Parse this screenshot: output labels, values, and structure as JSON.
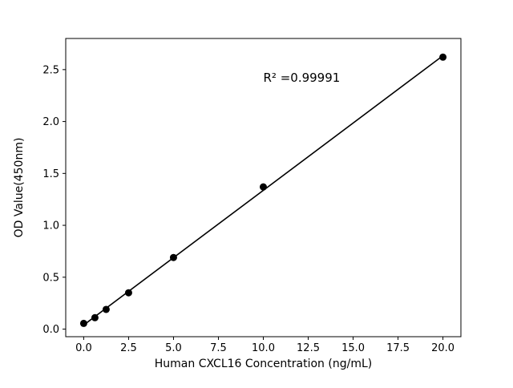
{
  "figure": {
    "background": "#ffffff"
  },
  "chart_data": {
    "type": "scatter",
    "title": "",
    "xlabel": "Human CXCL16 Concentration (ng/mL)",
    "ylabel": "OD Value(450nm)",
    "annotation": "R² =0.99991",
    "series": [
      {
        "name": "standard-curve-points",
        "x": [
          0,
          0.625,
          1.25,
          2.5,
          5,
          10,
          20
        ],
        "y": [
          0.055,
          0.11,
          0.19,
          0.35,
          0.69,
          1.37,
          2.62
        ]
      }
    ],
    "fit_line": {
      "type": "linear"
    },
    "xlim": [
      -1.0,
      21.0
    ],
    "ylim": [
      -0.073,
      2.8
    ],
    "xticks": [
      0.0,
      2.5,
      5.0,
      7.5,
      10.0,
      12.5,
      15.0,
      17.5,
      20.0
    ],
    "xtick_labels": [
      "0.0",
      "2.5",
      "5.0",
      "7.5",
      "10.0",
      "12.5",
      "15.0",
      "17.5",
      "20.0"
    ],
    "yticks": [
      0.0,
      0.5,
      1.0,
      1.5,
      2.0,
      2.5
    ],
    "ytick_labels": [
      "0.0",
      "0.5",
      "1.0",
      "1.5",
      "2.0",
      "2.5"
    ],
    "marker_color": "#000000",
    "line_color": "#000000",
    "axis_color": "#000000",
    "grid": false,
    "legend": "none",
    "annotation_position": {
      "x_frac": 0.5,
      "y_frac": 0.145
    }
  }
}
